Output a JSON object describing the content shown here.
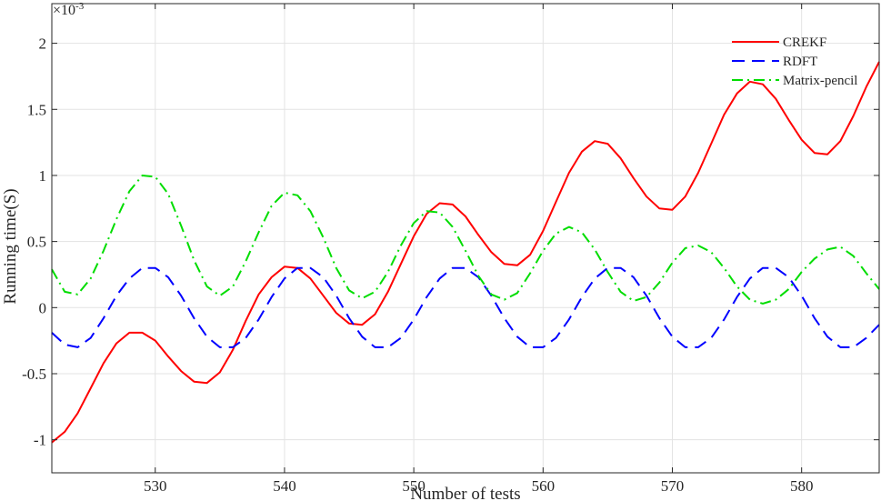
{
  "chart_data": {
    "type": "line",
    "xlabel": "Number of tests",
    "ylabel": "Running time(S)",
    "y_exponent_label": {
      "base": "×10",
      "exponent": "-3"
    },
    "xlim": [
      522,
      586
    ],
    "ylim": [
      -1.25,
      2.3
    ],
    "x_ticks": [
      530,
      540,
      550,
      560,
      570,
      580
    ],
    "x_tick_labels": [
      "530",
      "540",
      "550",
      "560",
      "570",
      "580"
    ],
    "y_ticks": [
      -1,
      -0.5,
      0,
      0.5,
      1,
      1.5,
      2
    ],
    "y_tick_labels": [
      "-1",
      "-0.5",
      "0",
      "0.5",
      "1",
      "1.5",
      "2"
    ],
    "grid": true,
    "legend_position": "top-right",
    "x": [
      522,
      523,
      524,
      525,
      526,
      527,
      528,
      529,
      530,
      531,
      532,
      533,
      534,
      535,
      536,
      537,
      538,
      539,
      540,
      541,
      542,
      543,
      544,
      545,
      546,
      547,
      548,
      549,
      550,
      551,
      552,
      553,
      554,
      555,
      556,
      557,
      558,
      559,
      560,
      561,
      562,
      563,
      564,
      565,
      566,
      567,
      568,
      569,
      570,
      571,
      572,
      573,
      574,
      575,
      576,
      577,
      578,
      579,
      580,
      581,
      582,
      583,
      584,
      585,
      586
    ],
    "series": [
      {
        "name": "CREKF",
        "color": "#ff0000",
        "style": "solid",
        "values": [
          -1.02,
          -0.94,
          -0.8,
          -0.61,
          -0.42,
          -0.27,
          -0.19,
          -0.19,
          -0.25,
          -0.37,
          -0.48,
          -0.56,
          -0.57,
          -0.49,
          -0.32,
          -0.1,
          0.1,
          0.23,
          0.31,
          0.3,
          0.22,
          0.09,
          -0.04,
          -0.12,
          -0.13,
          -0.05,
          0.12,
          0.33,
          0.54,
          0.71,
          0.79,
          0.78,
          0.69,
          0.55,
          0.42,
          0.33,
          0.32,
          0.4,
          0.58,
          0.8,
          1.02,
          1.18,
          1.26,
          1.24,
          1.13,
          0.98,
          0.84,
          0.75,
          0.74,
          0.84,
          1.02,
          1.24,
          1.46,
          1.62,
          1.71,
          1.69,
          1.58,
          1.42,
          1.27,
          1.17,
          1.16,
          1.26,
          1.45,
          1.67,
          1.86
        ]
      },
      {
        "name": "RDFT",
        "color": "#0000ff",
        "style": "dashed",
        "values": [
          -0.19,
          -0.28,
          -0.3,
          -0.23,
          -0.08,
          0.09,
          0.22,
          0.3,
          0.3,
          0.23,
          0.09,
          -0.08,
          -0.22,
          -0.3,
          -0.3,
          -0.23,
          -0.09,
          0.08,
          0.22,
          0.3,
          0.3,
          0.23,
          0.09,
          -0.08,
          -0.22,
          -0.3,
          -0.3,
          -0.23,
          -0.09,
          0.08,
          0.22,
          0.3,
          0.3,
          0.23,
          0.09,
          -0.08,
          -0.22,
          -0.3,
          -0.3,
          -0.23,
          -0.09,
          0.08,
          0.22,
          0.3,
          0.3,
          0.23,
          0.09,
          -0.08,
          -0.22,
          -0.3,
          -0.3,
          -0.23,
          -0.09,
          0.08,
          0.22,
          0.3,
          0.3,
          0.23,
          0.09,
          -0.08,
          -0.22,
          -0.3,
          -0.3,
          -0.23,
          -0.13
        ]
      },
      {
        "name": "Matrix-pencil",
        "color": "#00dd00",
        "style": "dashdot",
        "values": [
          0.29,
          0.12,
          0.1,
          0.22,
          0.43,
          0.67,
          0.88,
          1.0,
          0.99,
          0.86,
          0.62,
          0.36,
          0.16,
          0.09,
          0.16,
          0.35,
          0.57,
          0.77,
          0.87,
          0.85,
          0.73,
          0.53,
          0.3,
          0.13,
          0.07,
          0.12,
          0.27,
          0.47,
          0.64,
          0.73,
          0.72,
          0.61,
          0.43,
          0.24,
          0.1,
          0.06,
          0.11,
          0.26,
          0.43,
          0.56,
          0.61,
          0.57,
          0.44,
          0.27,
          0.12,
          0.05,
          0.08,
          0.19,
          0.34,
          0.45,
          0.47,
          0.42,
          0.3,
          0.16,
          0.06,
          0.03,
          0.06,
          0.14,
          0.27,
          0.37,
          0.44,
          0.46,
          0.39,
          0.26,
          0.14
        ]
      }
    ]
  }
}
